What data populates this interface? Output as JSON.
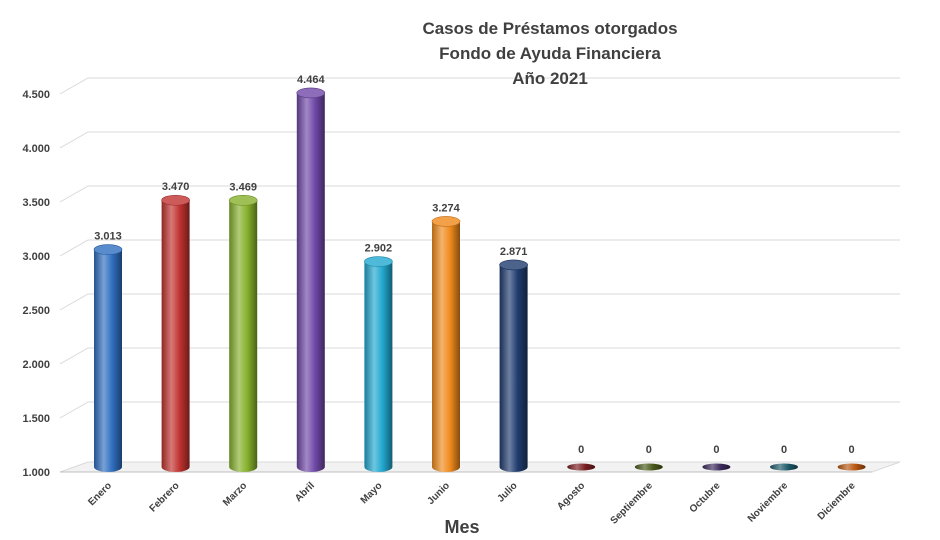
{
  "chart_data": {
    "type": "bar",
    "title_lines": [
      "Casos de Préstamos otorgados",
      "Fondo de Ayuda Financiera",
      "Año 2021"
    ],
    "xlabel": "Mes",
    "ylabel": "",
    "ylim": [
      1000,
      4500
    ],
    "yticks": [
      1000,
      1500,
      2000,
      2500,
      3000,
      3500,
      4000,
      4500
    ],
    "ytick_labels": [
      "1.000",
      "1.500",
      "2.000",
      "2.500",
      "3.000",
      "3.500",
      "4.000",
      "4.500"
    ],
    "categories": [
      "Enero",
      "Febrero",
      "Marzo",
      "Abril",
      "Mayo",
      "Junio",
      "Julio",
      "Agosto",
      "Septiembre",
      "Octubre",
      "Noviembre",
      "Diciembre"
    ],
    "values": [
      3013,
      3470,
      3469,
      4464,
      2902,
      3274,
      2871,
      0,
      0,
      0,
      0,
      0
    ],
    "value_labels": [
      "3.013",
      "3.470",
      "3.469",
      "4.464",
      "2.902",
      "3.274",
      "2.871",
      "0",
      "0",
      "0",
      "0",
      "0"
    ],
    "colors": [
      "#2f6fc0",
      "#c0322f",
      "#86b02c",
      "#7048a8",
      "#22a7cf",
      "#f08a1c",
      "#1f3c6e",
      "#7a1f1f",
      "#4a5a1c",
      "#3c2a5c",
      "#1d5a6a",
      "#b8560f"
    ],
    "grid": true,
    "legend": "none"
  }
}
